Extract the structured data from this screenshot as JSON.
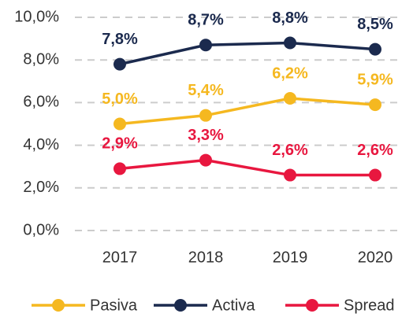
{
  "chart_data": {
    "type": "line",
    "categories": [
      "2017",
      "2018",
      "2019",
      "2020"
    ],
    "series": [
      {
        "name": "Pasiva",
        "color": "#f5b820",
        "values": [
          5.0,
          5.4,
          6.2,
          5.9
        ],
        "value_labels": [
          "5,0%",
          "5,4%",
          "6,2%",
          "5,9%"
        ]
      },
      {
        "name": "Activa",
        "color": "#1b2a4e",
        "values": [
          7.8,
          8.7,
          8.8,
          8.5
        ],
        "value_labels": [
          "7,8%",
          "8,7%",
          "8,8%",
          "8,5%"
        ]
      },
      {
        "name": "Spread",
        "color": "#e8173f",
        "values": [
          2.9,
          3.3,
          2.6,
          2.6
        ],
        "value_labels": [
          "2,9%",
          "3,3%",
          "2,6%",
          "2,6%"
        ]
      }
    ],
    "ylim": [
      0,
      10
    ],
    "yticks": [
      {
        "value": 0,
        "label": "0,0%"
      },
      {
        "value": 2,
        "label": "2,0%"
      },
      {
        "value": 4,
        "label": "4,0%"
      },
      {
        "value": 6,
        "label": "6,0%"
      },
      {
        "value": 8,
        "label": "8,0%"
      },
      {
        "value": 10,
        "label": "10,0%"
      }
    ],
    "grid": true
  }
}
